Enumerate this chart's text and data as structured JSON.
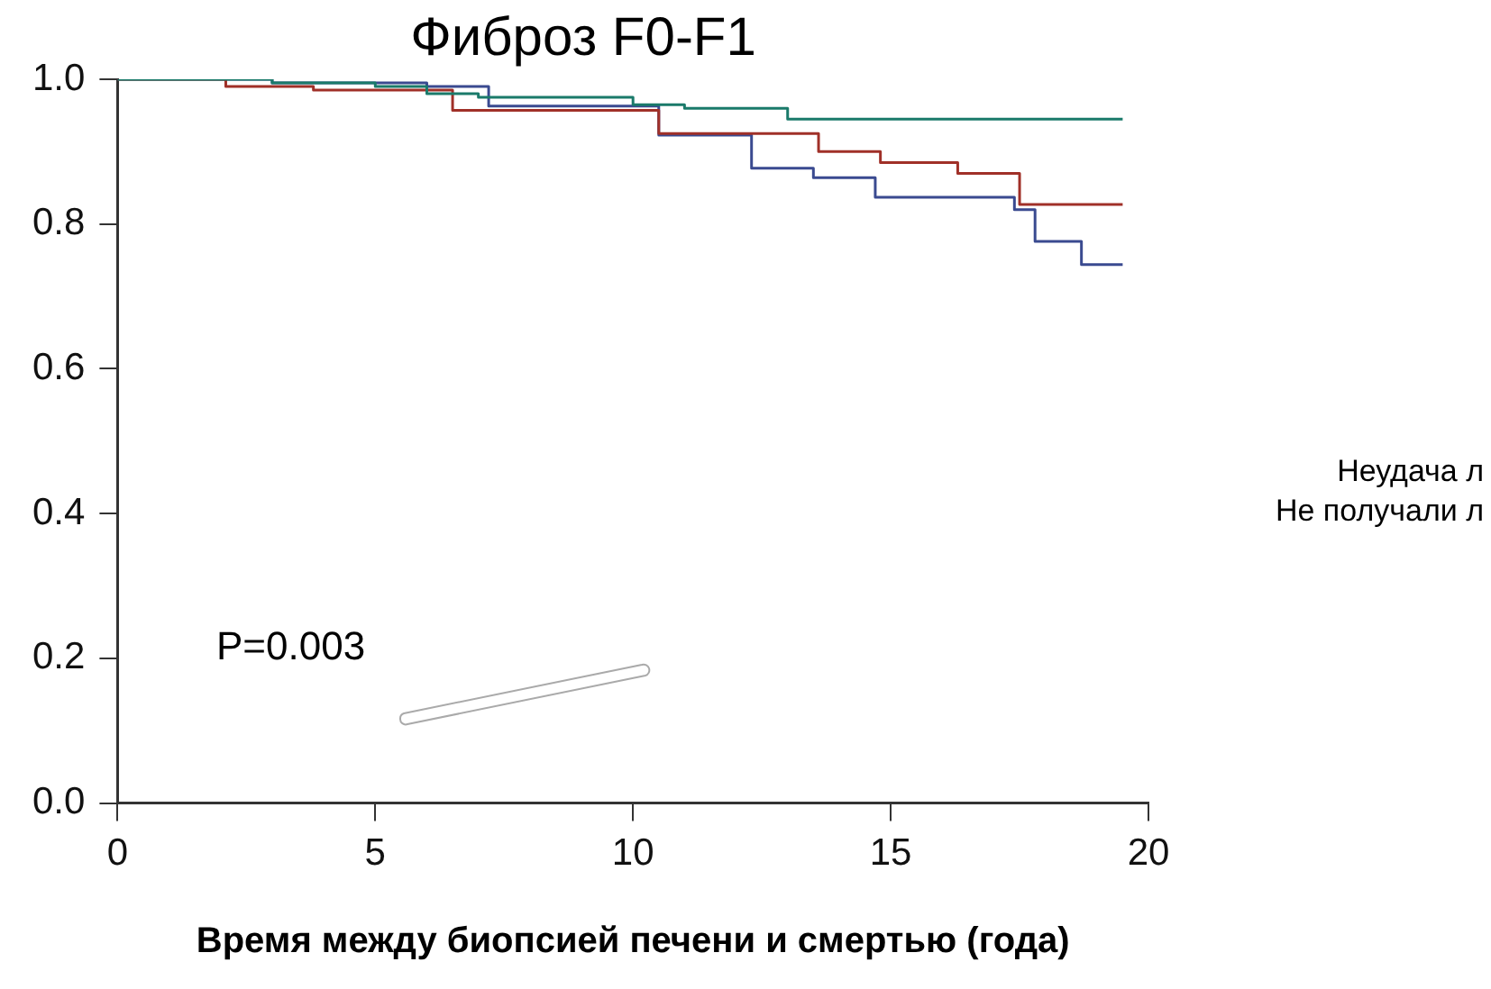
{
  "chart_data": {
    "type": "step",
    "title": "Фиброз F0-F1",
    "xlabel": "Время между биопсией печени и смертью (года)",
    "xlim": [
      0,
      20
    ],
    "xticks": [
      0,
      5,
      10,
      15,
      20
    ],
    "ylim": [
      0,
      1
    ],
    "yticks": [
      {
        "value": 0,
        "label": "0.0"
      },
      0.2,
      0.4,
      0.6,
      0.8,
      {
        "value": 1,
        "label": "1.0"
      }
    ],
    "grid": false,
    "legend": false,
    "series": [
      {
        "color": "#1a7a6a",
        "x": [
          0,
          1.5,
          3,
          5,
          6,
          7,
          10,
          11,
          13,
          19.5
        ],
        "values": [
          1.0,
          1.0,
          0.995,
          0.99,
          0.98,
          0.975,
          0.965,
          0.96,
          0.945,
          0.945
        ]
      },
      {
        "color": "#a03028",
        "x": [
          0,
          2.1,
          3.8,
          6.5,
          10.5,
          13.6,
          14.8,
          16.3,
          17.5,
          19.5
        ],
        "values": [
          1.0,
          0.99,
          0.985,
          0.957,
          0.925,
          0.9,
          0.885,
          0.87,
          0.827,
          0.827
        ]
      },
      {
        "color": "#3a4a90",
        "x": [
          0,
          3,
          6,
          7.2,
          10.5,
          12.3,
          13.5,
          14.7,
          17.4,
          17.8,
          18.7,
          19.5
        ],
        "values": [
          1.0,
          0.995,
          0.99,
          0.963,
          0.923,
          0.877,
          0.864,
          0.837,
          0.82,
          0.776,
          0.744,
          0.744
        ]
      }
    ],
    "annotations": [
      "P=0.003",
      "Неудача л",
      "Не получали л"
    ]
  }
}
